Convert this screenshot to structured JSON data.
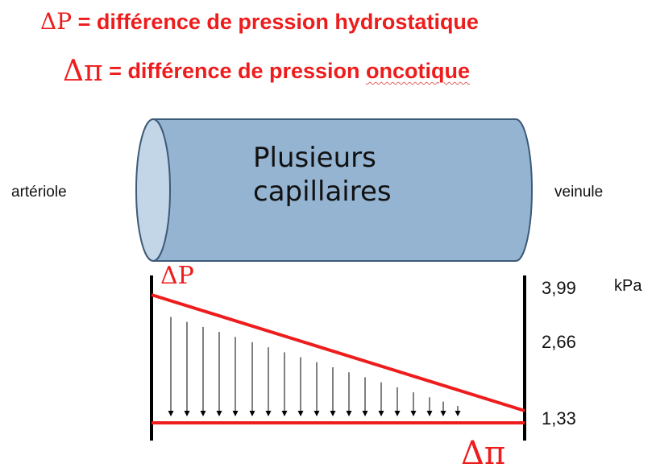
{
  "titles": {
    "line1_symbol": "ΔP",
    "line1_text": " = différence de pression hydrostatique",
    "line2_symbol": "Δπ",
    "line2_text_prefix": " = différence de pression ",
    "line2_text_word": "oncotique"
  },
  "labels": {
    "left": "artériole",
    "right": "veinule",
    "capillary_line1": "Plusieurs",
    "capillary_line2": "capillaires",
    "delta_p": "ΔP",
    "delta_pi": "Δπ",
    "unit": "kPa"
  },
  "scale_values": [
    "3,99",
    "2,66",
    "1,33"
  ],
  "colors": {
    "accent_red": "#ee1c1c",
    "cylinder_body": "#94b4d2",
    "cylinder_end": "#c3d6e7",
    "cylinder_stroke": "#3d5a78"
  }
}
